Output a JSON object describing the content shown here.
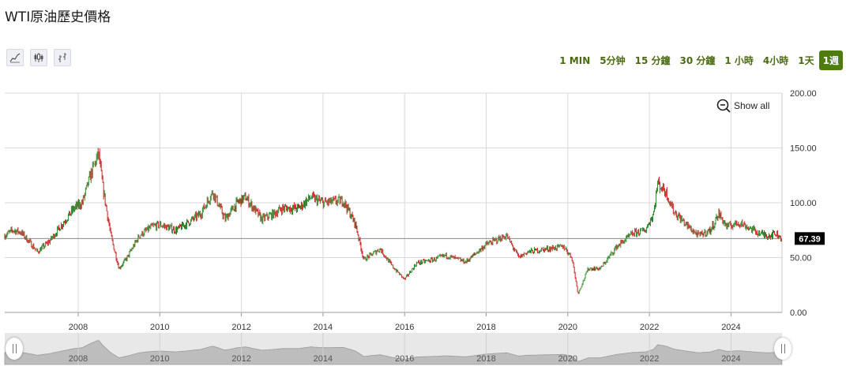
{
  "title": "WTI原油歷史價格",
  "tools": [
    {
      "name": "line-chart-icon"
    },
    {
      "name": "candlestick-icon"
    },
    {
      "name": "ohlc-bar-icon"
    }
  ],
  "ranges": [
    {
      "label": "1 MIN",
      "active": false
    },
    {
      "label": "5分钟",
      "active": false
    },
    {
      "label": "15 分鐘",
      "active": false
    },
    {
      "label": "30 分鐘",
      "active": false
    },
    {
      "label": "1 小時",
      "active": false
    },
    {
      "label": "4小時",
      "active": false
    },
    {
      "label": "1天",
      "active": false
    },
    {
      "label": "1週",
      "active": true
    }
  ],
  "show_all_label": "Show all",
  "colors": {
    "up": "#2e8b2e",
    "down": "#cc1f1f",
    "grid": "#d9d9d9",
    "navigator_fill": "#bdbdbd",
    "price_label_bg": "#000000",
    "active_range": "#4e7c0f"
  },
  "chart_data": {
    "type": "candlestick",
    "title": "WTI原油歷史價格",
    "x_ticks": [
      "2008",
      "2010",
      "2012",
      "2014",
      "2016",
      "2018",
      "2020",
      "2022",
      "2024"
    ],
    "y_ticks": [
      "0.00",
      "50.00",
      "100.00",
      "150.00",
      "200.00"
    ],
    "ylim": [
      0,
      200
    ],
    "xlim": [
      2006.2,
      2025.25
    ],
    "last_price": 67.39,
    "last_price_label": "67.39",
    "grid": true,
    "price_series": {
      "x": [
        2006.2,
        2006.4,
        2006.6,
        2006.9,
        2007.0,
        2007.3,
        2007.6,
        2007.9,
        2008.1,
        2008.3,
        2008.5,
        2008.6,
        2008.8,
        2009.0,
        2009.2,
        2009.5,
        2009.8,
        2010.0,
        2010.4,
        2010.7,
        2011.0,
        2011.3,
        2011.6,
        2011.9,
        2012.1,
        2012.5,
        2012.8,
        2013.0,
        2013.4,
        2013.7,
        2014.0,
        2014.5,
        2014.8,
        2015.0,
        2015.4,
        2015.7,
        2016.0,
        2016.3,
        2016.7,
        2017.0,
        2017.5,
        2018.0,
        2018.5,
        2018.8,
        2019.0,
        2019.5,
        2019.9,
        2020.1,
        2020.25,
        2020.5,
        2020.8,
        2021.2,
        2021.6,
        2021.9,
        2022.1,
        2022.2,
        2022.4,
        2022.6,
        2022.9,
        2023.2,
        2023.5,
        2023.7,
        2023.9,
        2024.2,
        2024.4,
        2024.7,
        2024.9,
        2025.1,
        2025.25
      ],
      "y": [
        70,
        75,
        73,
        60,
        55,
        65,
        80,
        95,
        100,
        125,
        145,
        115,
        70,
        40,
        50,
        70,
        78,
        80,
        75,
        82,
        90,
        110,
        85,
        100,
        105,
        85,
        90,
        95,
        95,
        105,
        100,
        102,
        80,
        48,
        58,
        42,
        30,
        45,
        48,
        52,
        46,
        62,
        70,
        50,
        55,
        58,
        60,
        50,
        17,
        40,
        40,
        60,
        72,
        75,
        90,
        118,
        110,
        92,
        80,
        70,
        75,
        90,
        78,
        82,
        78,
        72,
        70,
        72,
        67.39
      ]
    },
    "navigator_x_ticks": [
      "2008",
      "2010",
      "2012",
      "2014",
      "2016",
      "2018",
      "2020",
      "2022",
      "2024"
    ]
  }
}
